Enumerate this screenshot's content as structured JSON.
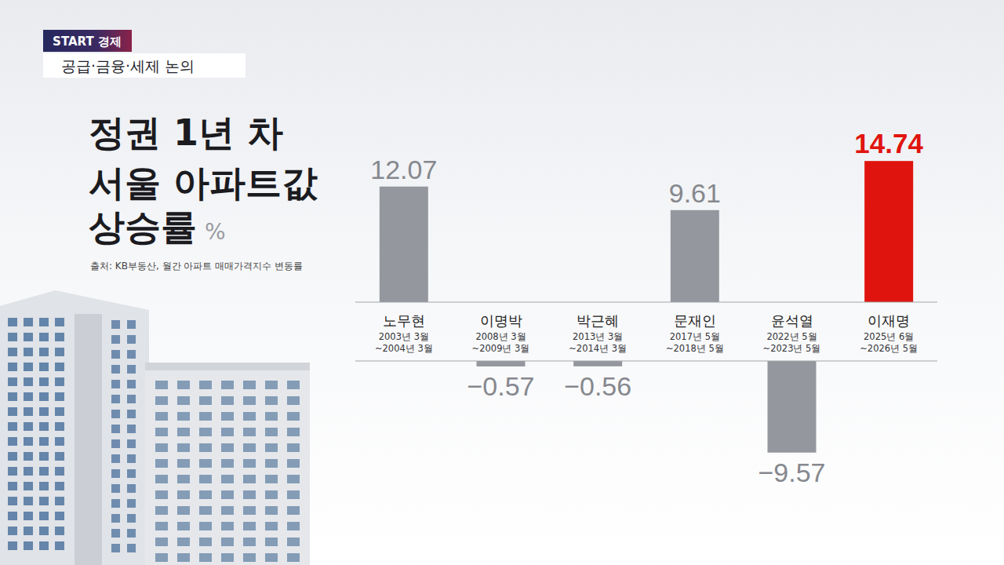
{
  "chart_data": {
    "type": "bar",
    "badge": "START 경제",
    "topic": "공급·금융·세제 논의",
    "title": [
      "정권 1년 차",
      "서울 아파트값",
      "상승률"
    ],
    "unit": "%",
    "source": "출처: KB부동산, 월간 아파트 매매가격지수 변동률",
    "categories": [
      "노무현",
      "이명박",
      "박근혜",
      "문재인",
      "윤석열",
      "이재명"
    ],
    "periods": [
      [
        "2003년 3월",
        "~2004년 3월"
      ],
      [
        "2008년 3월",
        "~2009년 3월"
      ],
      [
        "2013년 3월",
        "~2014년 3월"
      ],
      [
        "2017년 5월",
        "~2018년 5월"
      ],
      [
        "2022년 5월",
        "~2023년 5월"
      ],
      [
        "2025년 6월",
        "~2026년 5월"
      ]
    ],
    "values": [
      12.07,
      -0.57,
      -0.56,
      9.61,
      -9.57,
      14.74
    ],
    "value_labels": [
      "12.07",
      "−0.57",
      "−0.56",
      "9.61",
      "−9.57",
      "14.74"
    ],
    "colors": [
      "#95979e",
      "#95979e",
      "#95979e",
      "#95979e",
      "#95979e",
      "#e0140e"
    ],
    "ylim": [
      -10,
      15
    ],
    "data_labels": true,
    "tick_labels": false,
    "grid": false
  }
}
